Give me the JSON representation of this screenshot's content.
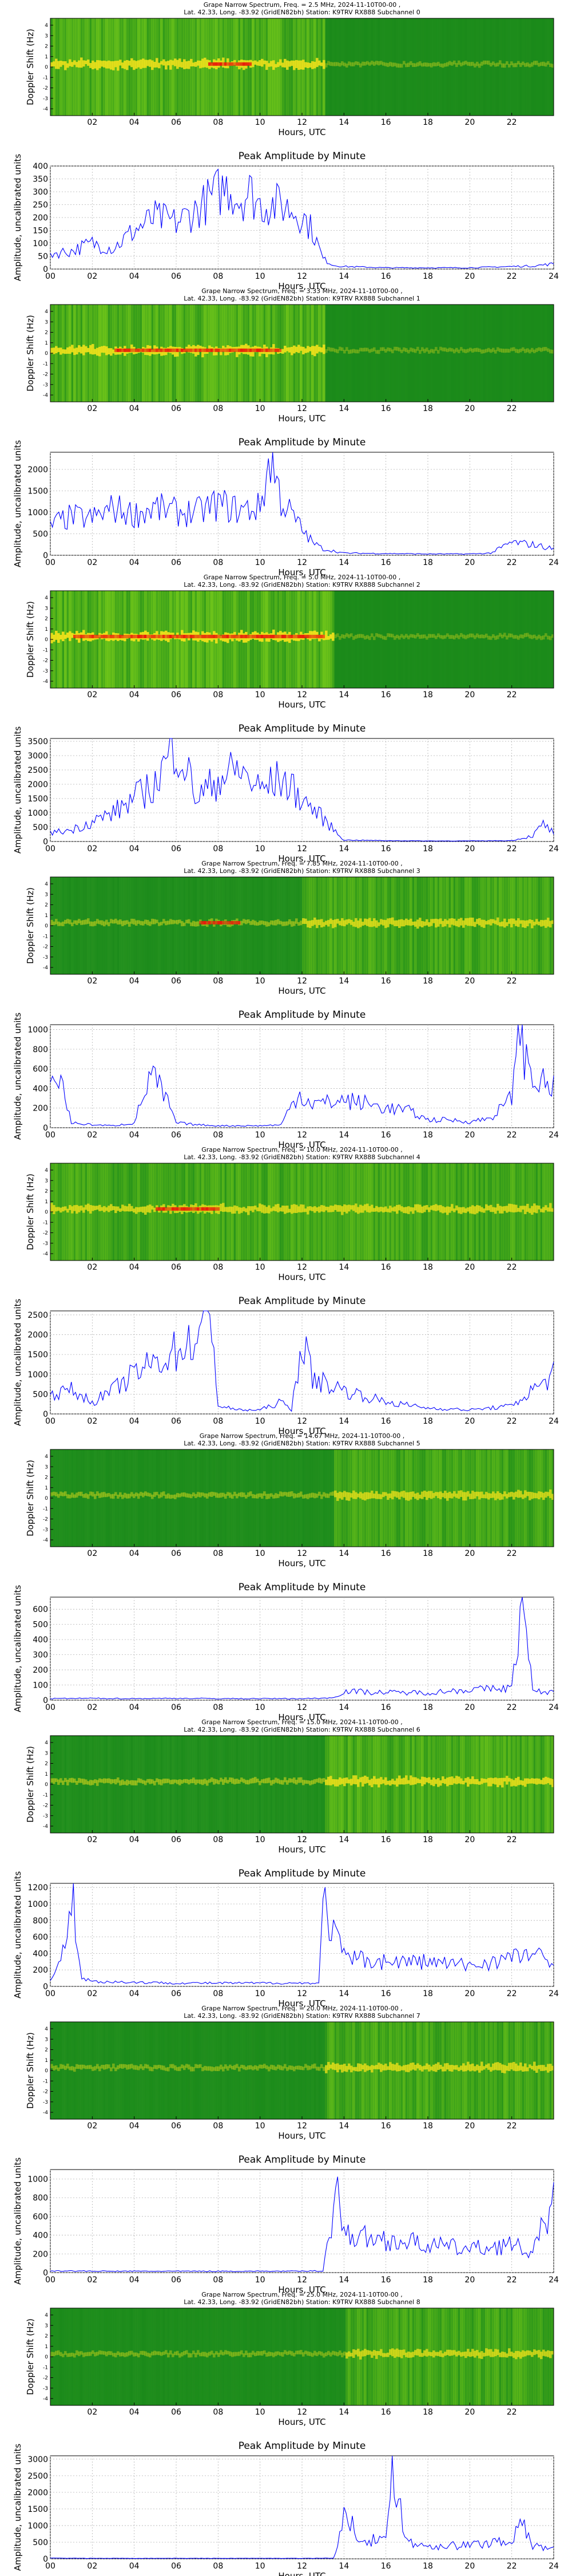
{
  "colors": {
    "line": "#0000ff",
    "grid": "#b0b0b0",
    "spec_bg": "#1a8a1a",
    "spec_hot": "#e81a0a",
    "spec_mid": "#f4e21a",
    "spec_lime": "#7fd01a"
  },
  "chart_data": [
    {
      "type": "heatmap",
      "subchannel": 0,
      "title": "Grape Narrow Spectrum, Freq. = 2.5 MHz, 2024-11-10T00-00 ,",
      "subtitle": "Lat.  42.33, Long. -83.92 (GridEN82bh) Station: K9TRV RX888 Subchannel 0",
      "xlabel": "Hours, UTC",
      "ylabel": "Doppler Shift (Hz)",
      "xticks": [
        "02",
        "04",
        "06",
        "08",
        "10",
        "12",
        "14",
        "16",
        "18",
        "20",
        "22"
      ],
      "yticks": [
        "4",
        "3",
        "2",
        "1",
        "0",
        "-1",
        "-2",
        "-3",
        "-4"
      ],
      "active_hours": [
        0,
        13
      ],
      "active_level": 0.85,
      "quiet_level": 0.15,
      "hot_band_hours": [
        7.5,
        9.5
      ]
    },
    {
      "type": "line",
      "title": "Peak Amplitude by Minute",
      "xlabel": "Hours, UTC",
      "ylabel": "Amplitude, uncalibrated units",
      "xticks": [
        "00",
        "02",
        "04",
        "06",
        "08",
        "10",
        "12",
        "14",
        "16",
        "18",
        "20",
        "22",
        "24"
      ],
      "yticks": [
        "0",
        "50",
        "100",
        "150",
        "200",
        "250",
        "300",
        "350",
        "400"
      ],
      "ylim": [
        0,
        400
      ],
      "x": [
        0,
        1,
        2,
        3,
        4,
        5,
        6,
        7,
        8,
        8.5,
        9,
        9.5,
        10,
        11,
        12,
        12.5,
        13,
        13.5,
        14,
        16,
        18,
        20,
        22,
        23,
        24
      ],
      "y": [
        60,
        70,
        100,
        80,
        150,
        200,
        180,
        230,
        300,
        320,
        270,
        300,
        250,
        250,
        210,
        150,
        40,
        15,
        10,
        5,
        5,
        5,
        10,
        12,
        20
      ]
    },
    {
      "type": "heatmap",
      "subchannel": 1,
      "title": "Grape Narrow Spectrum, Freq. = 3.33 MHz, 2024-11-10T00-00 ,",
      "subtitle": "Lat.  42.33, Long. -83.92 (GridEN82bh) Station: K9TRV RX888 Subchannel 1",
      "xlabel": "Hours, UTC",
      "ylabel": "Doppler Shift (Hz)",
      "xticks": [
        "02",
        "04",
        "06",
        "08",
        "10",
        "12",
        "14",
        "16",
        "18",
        "20",
        "22"
      ],
      "yticks": [
        "4",
        "3",
        "2",
        "1",
        "0",
        "-1",
        "-2",
        "-3",
        "-4"
      ],
      "active_hours": [
        0,
        13
      ],
      "active_level": 0.9,
      "quiet_level": 0.1,
      "hot_band_hours": [
        3,
        11
      ]
    },
    {
      "type": "line",
      "title": "Peak Amplitude by Minute",
      "xlabel": "Hours, UTC",
      "ylabel": "Amplitude, uncalibrated units",
      "xticks": [
        "00",
        "02",
        "04",
        "06",
        "08",
        "10",
        "12",
        "14",
        "16",
        "18",
        "20",
        "22",
        "24"
      ],
      "yticks": [
        "0",
        "500",
        "1000",
        "1500",
        "2000"
      ],
      "ylim": [
        0,
        2400
      ],
      "x": [
        0,
        1,
        2,
        3,
        4,
        5,
        6,
        7,
        8,
        9,
        10,
        10.5,
        11,
        12,
        12.5,
        13,
        14,
        16,
        18,
        20,
        21,
        22,
        23,
        24
      ],
      "y": [
        700,
        900,
        850,
        1100,
        950,
        1100,
        1000,
        1000,
        1200,
        1050,
        1100,
        2300,
        1300,
        600,
        300,
        150,
        50,
        40,
        30,
        30,
        50,
        300,
        250,
        150
      ],
      "points": 240
    },
    {
      "type": "heatmap",
      "subchannel": 2,
      "title": "Grape Narrow Spectrum, Freq. = 5.0 MHz, 2024-11-10T00-00 ,",
      "subtitle": "Lat.  42.33, Long. -83.92 (GridEN82bh) Station: K9TRV RX888 Subchannel 2",
      "xlabel": "Hours, UTC",
      "ylabel": "Doppler Shift (Hz)",
      "xticks": [
        "02",
        "04",
        "06",
        "08",
        "10",
        "12",
        "14",
        "16",
        "18",
        "20",
        "22"
      ],
      "yticks": [
        "4",
        "3",
        "2",
        "1",
        "0",
        "-1",
        "-2",
        "-3",
        "-4"
      ],
      "active_hours": [
        0,
        13.5
      ],
      "active_level": 0.95,
      "quiet_level": 0.1,
      "hot_band_hours": [
        1,
        13
      ]
    },
    {
      "type": "line",
      "title": "Peak Amplitude by Minute",
      "xlabel": "Hours, UTC",
      "ylabel": "Amplitude, uncalibrated units",
      "xticks": [
        "00",
        "02",
        "04",
        "06",
        "08",
        "10",
        "12",
        "14",
        "16",
        "18",
        "20",
        "22",
        "24"
      ],
      "yticks": [
        "0",
        "500",
        "1000",
        "1500",
        "2000",
        "2500",
        "3000",
        "3500"
      ],
      "ylim": [
        0,
        3600
      ],
      "x": [
        0,
        1,
        2,
        3,
        4,
        5,
        6,
        7,
        8,
        9,
        10,
        11,
        12,
        13,
        14,
        16,
        18,
        20,
        22,
        23,
        23.5,
        24
      ],
      "y": [
        300,
        400,
        700,
        1000,
        1500,
        2000,
        3500,
        1500,
        2200,
        2500,
        1800,
        2200,
        1500,
        800,
        50,
        30,
        20,
        20,
        30,
        200,
        600,
        300
      ],
      "points": 240
    },
    {
      "type": "heatmap",
      "subchannel": 3,
      "title": "Grape Narrow Spectrum, Freq. = 7.85 MHz, 2024-11-10T00-00 ,",
      "subtitle": "Lat.  42.33, Long. -83.92 (GridEN82bh) Station: K9TRV RX888 Subchannel 3",
      "xlabel": "Hours, UTC",
      "ylabel": "Doppler Shift (Hz)",
      "xticks": [
        "02",
        "04",
        "06",
        "08",
        "10",
        "12",
        "14",
        "16",
        "18",
        "20",
        "22"
      ],
      "yticks": [
        "4",
        "3",
        "2",
        "1",
        "0",
        "-1",
        "-2",
        "-3",
        "-4"
      ],
      "active_hours": [
        12,
        24
      ],
      "active_level": 0.7,
      "quiet_level": 0.35,
      "hot_band_hours": [
        7,
        9
      ]
    },
    {
      "type": "line",
      "title": "Peak Amplitude by Minute",
      "xlabel": "Hours, UTC",
      "ylabel": "Amplitude, uncalibrated units",
      "xticks": [
        "00",
        "02",
        "04",
        "06",
        "08",
        "10",
        "12",
        "14",
        "16",
        "18",
        "20",
        "22",
        "24"
      ],
      "yticks": [
        "0",
        "200",
        "400",
        "600",
        "800",
        "1000"
      ],
      "ylim": [
        0,
        1050
      ],
      "x": [
        0,
        0.5,
        1,
        2,
        3,
        4,
        4.8,
        5.5,
        6,
        7,
        8,
        9,
        10,
        11,
        11.8,
        12.5,
        13,
        14,
        15,
        16,
        17,
        18,
        19,
        20,
        21,
        22,
        22.2,
        23,
        24
      ],
      "y": [
        450,
        500,
        50,
        30,
        20,
        50,
        550,
        300,
        50,
        30,
        20,
        20,
        20,
        30,
        350,
        250,
        250,
        280,
        250,
        200,
        180,
        80,
        80,
        60,
        100,
        300,
        1000,
        500,
        400
      ],
      "points": 240
    },
    {
      "type": "heatmap",
      "subchannel": 4,
      "title": "Grape Narrow Spectrum, Freq. = 10.0 MHz, 2024-11-10T00-00 ,",
      "subtitle": "Lat.  42.33, Long. -83.92 (GridEN82bh) Station: K9TRV RX888 Subchannel 4",
      "xlabel": "Hours, UTC",
      "ylabel": "Doppler Shift (Hz)",
      "xticks": [
        "02",
        "04",
        "06",
        "08",
        "10",
        "12",
        "14",
        "16",
        "18",
        "20",
        "22"
      ],
      "yticks": [
        "4",
        "3",
        "2",
        "1",
        "0",
        "-1",
        "-2",
        "-3",
        "-4"
      ],
      "active_hours": [
        0,
        24
      ],
      "active_level": 0.7,
      "quiet_level": 0.4,
      "hot_band_hours": [
        5,
        8
      ]
    },
    {
      "type": "line",
      "title": "Peak Amplitude by Minute",
      "xlabel": "Hours, UTC",
      "ylabel": "Amplitude, uncalibrated units",
      "xticks": [
        "00",
        "02",
        "04",
        "06",
        "08",
        "10",
        "12",
        "14",
        "16",
        "18",
        "20",
        "22",
        "24"
      ],
      "yticks": [
        "0",
        "500",
        "1000",
        "1500",
        "2000",
        "2500"
      ],
      "ylim": [
        0,
        2600
      ],
      "x": [
        0,
        1,
        2,
        3,
        4,
        5,
        6,
        7,
        7.7,
        8,
        9,
        10,
        11,
        11.5,
        12,
        12.5,
        13,
        14,
        16,
        18,
        20,
        22,
        23,
        24
      ],
      "y": [
        500,
        600,
        300,
        600,
        1000,
        1300,
        1600,
        1900,
        2500,
        200,
        100,
        100,
        300,
        100,
        1900,
        900,
        800,
        600,
        300,
        150,
        100,
        200,
        600,
        1000
      ],
      "points": 240
    },
    {
      "type": "heatmap",
      "subchannel": 5,
      "title": "Grape Narrow Spectrum, Freq. = 14.67 MHz, 2024-11-10T00-00 ,",
      "subtitle": "Lat.  42.33, Long. -83.92 (GridEN82bh) Station: K9TRV RX888 Subchannel 5",
      "xlabel": "Hours, UTC",
      "ylabel": "Doppler Shift (Hz)",
      "xticks": [
        "02",
        "04",
        "06",
        "08",
        "10",
        "12",
        "14",
        "16",
        "18",
        "20",
        "22"
      ],
      "yticks": [
        "4",
        "3",
        "2",
        "1",
        "0",
        "-1",
        "-2",
        "-3",
        "-4"
      ],
      "active_hours": [
        13.5,
        24
      ],
      "active_level": 0.65,
      "quiet_level": 0.3,
      "hot_band_hours": []
    },
    {
      "type": "line",
      "title": "Peak Amplitude by Minute",
      "xlabel": "Hours, UTC",
      "ylabel": "Amplitude, uncalibrated units",
      "xticks": [
        "00",
        "02",
        "04",
        "06",
        "08",
        "10",
        "12",
        "14",
        "16",
        "18",
        "20",
        "22",
        "24"
      ],
      "yticks": [
        "0",
        "100",
        "200",
        "300",
        "400",
        "500",
        "600"
      ],
      "ylim": [
        0,
        680
      ],
      "x": [
        0,
        2,
        4,
        6,
        8,
        10,
        12,
        13.5,
        14,
        16,
        18,
        20,
        22,
        22.5,
        23,
        24
      ],
      "y": [
        10,
        12,
        10,
        12,
        10,
        10,
        10,
        15,
        60,
        50,
        50,
        70,
        80,
        650,
        60,
        50
      ],
      "points": 240
    },
    {
      "type": "heatmap",
      "subchannel": 6,
      "title": "Grape Narrow Spectrum, Freq. = 15.0 MHz, 2024-11-10T00-00 ,",
      "subtitle": "Lat.  42.33, Long. -83.92 (GridEN82bh) Station: K9TRV RX888 Subchannel 6",
      "xlabel": "Hours, UTC",
      "ylabel": "Doppler Shift (Hz)",
      "xticks": [
        "02",
        "04",
        "06",
        "08",
        "10",
        "12",
        "14",
        "16",
        "18",
        "20",
        "22"
      ],
      "yticks": [
        "4",
        "3",
        "2",
        "1",
        "0",
        "-1",
        "-2",
        "-3",
        "-4"
      ],
      "active_hours": [
        13,
        24
      ],
      "active_level": 0.8,
      "quiet_level": 0.4,
      "hot_band_hours": []
    },
    {
      "type": "line",
      "title": "Peak Amplitude by Minute",
      "xlabel": "Hours, UTC",
      "ylabel": "Amplitude, uncalibrated units",
      "xticks": [
        "00",
        "02",
        "04",
        "06",
        "08",
        "10",
        "12",
        "14",
        "16",
        "18",
        "20",
        "22",
        "24"
      ],
      "yticks": [
        "0",
        "200",
        "400",
        "600",
        "800",
        "1000",
        "1200"
      ],
      "ylim": [
        0,
        1250
      ],
      "x": [
        0,
        0.5,
        1,
        1.5,
        2,
        4,
        6,
        8,
        10,
        12,
        12.8,
        13,
        14,
        16,
        18,
        20,
        22,
        23,
        24
      ],
      "y": [
        100,
        300,
        1200,
        100,
        60,
        50,
        40,
        40,
        40,
        40,
        40,
        1000,
        350,
        300,
        300,
        250,
        350,
        400,
        250
      ],
      "points": 240
    },
    {
      "type": "heatmap",
      "subchannel": 7,
      "title": "Grape Narrow Spectrum, Freq. = 20.0 MHz, 2024-11-10T00-00 ,",
      "subtitle": "Lat.  42.33, Long. -83.92 (GridEN82bh) Station: K9TRV RX888 Subchannel 7",
      "xlabel": "Hours, UTC",
      "ylabel": "Doppler Shift (Hz)",
      "xticks": [
        "02",
        "04",
        "06",
        "08",
        "10",
        "12",
        "14",
        "16",
        "18",
        "20",
        "22"
      ],
      "yticks": [
        "4",
        "3",
        "2",
        "1",
        "0",
        "-1",
        "-2",
        "-3",
        "-4"
      ],
      "active_hours": [
        13,
        24
      ],
      "active_level": 0.7,
      "quiet_level": 0.25,
      "hot_band_hours": []
    },
    {
      "type": "line",
      "title": "Peak Amplitude by Minute",
      "xlabel": "Hours, UTC",
      "ylabel": "Amplitude, uncalibrated units",
      "xticks": [
        "00",
        "02",
        "04",
        "06",
        "08",
        "10",
        "12",
        "14",
        "16",
        "18",
        "20",
        "22",
        "24"
      ],
      "yticks": [
        "0",
        "200",
        "400",
        "600",
        "800",
        "1000"
      ],
      "ylim": [
        0,
        1100
      ],
      "x": [
        0,
        2,
        4,
        6,
        8,
        10,
        12,
        13,
        13.7,
        14,
        16,
        18,
        20,
        22,
        23,
        24
      ],
      "y": [
        20,
        15,
        15,
        15,
        15,
        15,
        15,
        20,
        950,
        400,
        350,
        300,
        250,
        300,
        200,
        800
      ],
      "points": 240
    },
    {
      "type": "heatmap",
      "subchannel": 8,
      "title": "Grape Narrow Spectrum, Freq. = 25.0 MHz, 2024-11-10T00-00 ,",
      "subtitle": "Lat.  42.33, Long. -83.92 (GridEN82bh) Station: K9TRV RX888 Subchannel 8",
      "xlabel": "Hours, UTC",
      "ylabel": "Doppler Shift (Hz)",
      "xticks": [
        "02",
        "04",
        "06",
        "08",
        "10",
        "12",
        "14",
        "16",
        "18",
        "20",
        "22"
      ],
      "yticks": [
        "4",
        "3",
        "2",
        "1",
        "0",
        "-1",
        "-2",
        "-3",
        "-4"
      ],
      "active_hours": [
        14,
        24
      ],
      "active_level": 0.65,
      "quiet_level": 0.2,
      "hot_band_hours": []
    },
    {
      "type": "line",
      "title": "Peak Amplitude by Minute",
      "xlabel": "Hours, UTC",
      "ylabel": "Amplitude, uncalibrated units",
      "xticks": [
        "00",
        "02",
        "04",
        "06",
        "08",
        "10",
        "12",
        "14",
        "16",
        "18",
        "20",
        "22",
        "24"
      ],
      "yticks": [
        "0",
        "500",
        "1000",
        "1500",
        "2000",
        "2500",
        "3000"
      ],
      "ylim": [
        0,
        3100
      ],
      "x": [
        0,
        2,
        4,
        6,
        8,
        10,
        12,
        13.5,
        14,
        15,
        16,
        16.3,
        17,
        18,
        20,
        22,
        22.5,
        23,
        24
      ],
      "y": [
        20,
        15,
        15,
        15,
        15,
        15,
        15,
        20,
        1200,
        600,
        500,
        3000,
        500,
        400,
        400,
        600,
        1000,
        400,
        300
      ],
      "points": 240
    }
  ]
}
